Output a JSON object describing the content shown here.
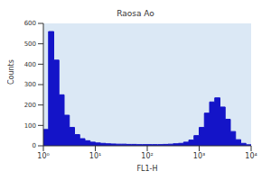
{
  "chart_data": {
    "type": "histogram",
    "title": "Raosa Ao",
    "x_label": "FL1-H",
    "y_label": "Counts",
    "color": "#1414c8",
    "log": "x",
    "grid": false,
    "bins": [
      1,
      1.259,
      1.585,
      1.995,
      2.512,
      3.162,
      3.981,
      5.012,
      6.31,
      7.943,
      10,
      12.59,
      15.85,
      19.95,
      25.12,
      31.62,
      39.81,
      50.12,
      63.1,
      79.43,
      100,
      125.9,
      158.5,
      199.5,
      251.2,
      316.2,
      398.1,
      501.2,
      631,
      794.3,
      1000,
      1259,
      1585,
      1995,
      2512,
      3162,
      3981,
      5012,
      6310,
      7943,
      10000
    ],
    "counts": [
      80,
      560,
      420,
      250,
      150,
      90,
      55,
      35,
      25,
      18,
      14,
      12,
      10,
      9,
      8,
      8,
      7,
      7,
      6,
      6,
      6,
      6,
      6,
      7,
      8,
      10,
      12,
      18,
      28,
      50,
      90,
      160,
      215,
      235,
      190,
      130,
      70,
      30,
      12,
      5
    ],
    "xlim": [
      1,
      10000
    ],
    "xticks": [
      {
        "value": 1,
        "label": "10⁰"
      },
      {
        "value": 10,
        "label": "10¹"
      },
      {
        "value": 100,
        "label": "10²"
      },
      {
        "value": 1000,
        "label": "10³"
      },
      {
        "value": 10000,
        "label": "10⁴"
      }
    ],
    "ylim": [
      0,
      600
    ],
    "yticks": [
      0,
      100,
      200,
      300,
      400,
      500,
      600
    ]
  }
}
